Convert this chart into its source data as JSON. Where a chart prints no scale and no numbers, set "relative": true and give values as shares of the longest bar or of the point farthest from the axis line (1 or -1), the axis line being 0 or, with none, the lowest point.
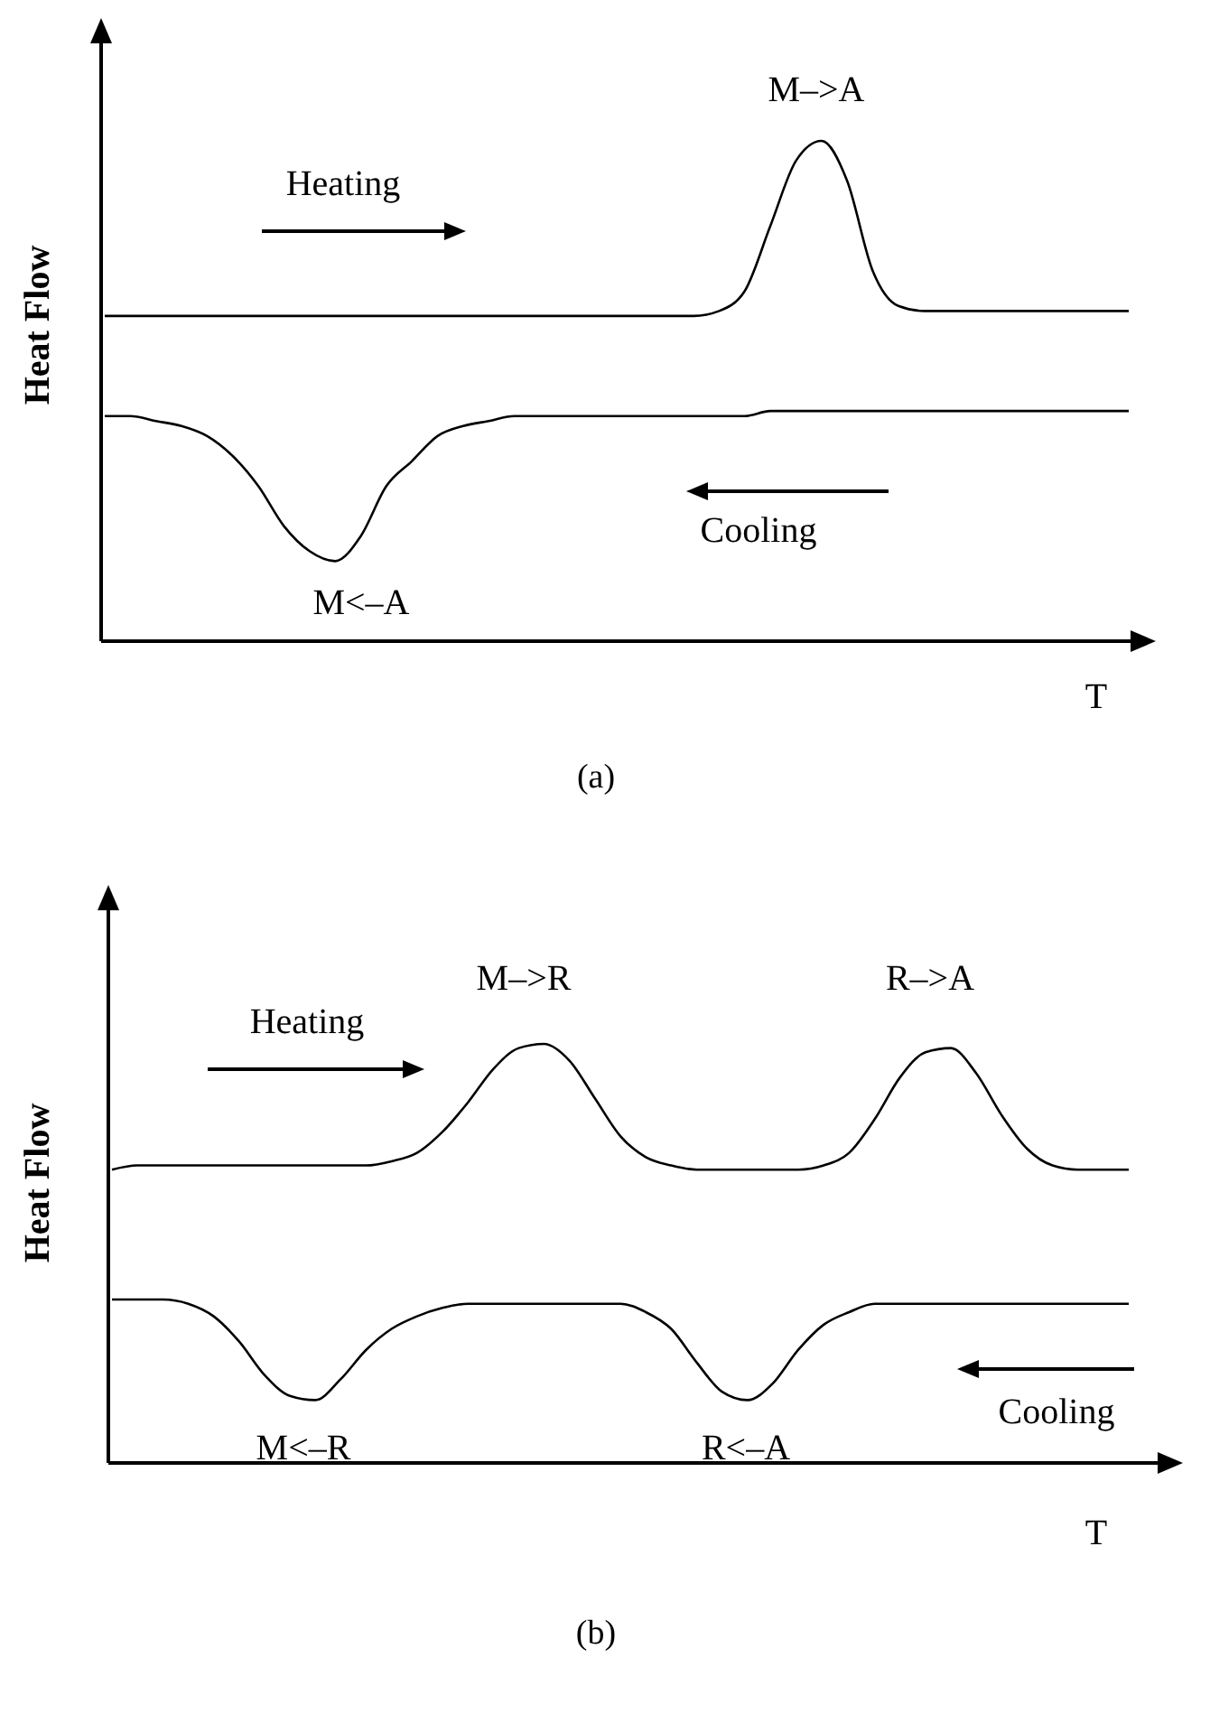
{
  "chart_data": [
    {
      "type": "line",
      "relative": true,
      "title": "(a)",
      "xlabel": "T",
      "ylabel": "Heat Flow",
      "categories": [
        null,
        null,
        null,
        null,
        null,
        null,
        null,
        null,
        null,
        null,
        null,
        null,
        null,
        null,
        null,
        null,
        null,
        null,
        null,
        null,
        null,
        null,
        null,
        null,
        null,
        null,
        null,
        null,
        null,
        null,
        null,
        null,
        null,
        null,
        null,
        null,
        null,
        null,
        null,
        null,
        null
      ],
      "series": [
        {
          "color": "#000000",
          "values": [
            0.65,
            0.65,
            0.65,
            0.65,
            0.65,
            0.65,
            0.65,
            0.65,
            0.65,
            0.65,
            0.65,
            0.65,
            0.65,
            0.65,
            0.65,
            0.65,
            0.65,
            0.65,
            0.65,
            0.65,
            0.65,
            0.65,
            0.65,
            0.65,
            0.66,
            0.7,
            0.83,
            0.96,
            1.0,
            0.92,
            0.74,
            0.67,
            0.66,
            0.66,
            0.66,
            0.66,
            0.66,
            0.66,
            0.66,
            0.66,
            0.66
          ]
        },
        {
          "color": "#000000",
          "values": [
            0.45,
            0.45,
            0.44,
            0.43,
            0.41,
            0.37,
            0.31,
            0.23,
            0.18,
            0.16,
            0.21,
            0.31,
            0.36,
            0.41,
            0.43,
            0.44,
            0.45,
            0.45,
            0.45,
            0.45,
            0.45,
            0.45,
            0.45,
            0.45,
            0.45,
            0.45,
            0.46,
            0.46,
            0.46,
            0.46,
            0.46,
            0.46,
            0.46,
            0.46,
            0.46,
            0.46,
            0.46,
            0.46,
            0.46,
            0.46,
            0.46
          ]
        }
      ],
      "annotations": [
        "M–>A",
        "Heating",
        "Cooling",
        "M<–A"
      ]
    },
    {
      "type": "line",
      "relative": true,
      "title": "(b)",
      "xlabel": "T",
      "ylabel": "Heat Flow",
      "categories": [
        null,
        null,
        null,
        null,
        null,
        null,
        null,
        null,
        null,
        null,
        null,
        null,
        null,
        null,
        null,
        null,
        null,
        null,
        null,
        null,
        null,
        null,
        null,
        null,
        null,
        null,
        null,
        null,
        null,
        null,
        null,
        null,
        null,
        null,
        null,
        null,
        null,
        null,
        null,
        null,
        null
      ],
      "series": [
        {
          "color": "#000000",
          "values": [
            0.7,
            0.71,
            0.71,
            0.71,
            0.71,
            0.71,
            0.71,
            0.71,
            0.71,
            0.71,
            0.71,
            0.72,
            0.74,
            0.79,
            0.86,
            0.94,
            0.99,
            1.0,
            0.96,
            0.87,
            0.78,
            0.73,
            0.71,
            0.7,
            0.7,
            0.7,
            0.7,
            0.7,
            0.71,
            0.74,
            0.82,
            0.92,
            0.98,
            0.99,
            0.93,
            0.83,
            0.75,
            0.71,
            0.7,
            0.7,
            0.7
          ]
        },
        {
          "color": "#000000",
          "values": [
            0.39,
            0.39,
            0.39,
            0.38,
            0.35,
            0.29,
            0.21,
            0.16,
            0.15,
            0.2,
            0.27,
            0.32,
            0.35,
            0.37,
            0.38,
            0.38,
            0.38,
            0.38,
            0.38,
            0.38,
            0.38,
            0.36,
            0.32,
            0.24,
            0.17,
            0.15,
            0.19,
            0.27,
            0.33,
            0.36,
            0.38,
            0.38,
            0.38,
            0.38,
            0.38,
            0.38,
            0.38,
            0.38,
            0.38,
            0.38,
            0.38
          ]
        }
      ],
      "annotations": [
        "Heating",
        "M–>R",
        "R–>A",
        "M<–R",
        "R<–A",
        "Cooling"
      ]
    }
  ]
}
